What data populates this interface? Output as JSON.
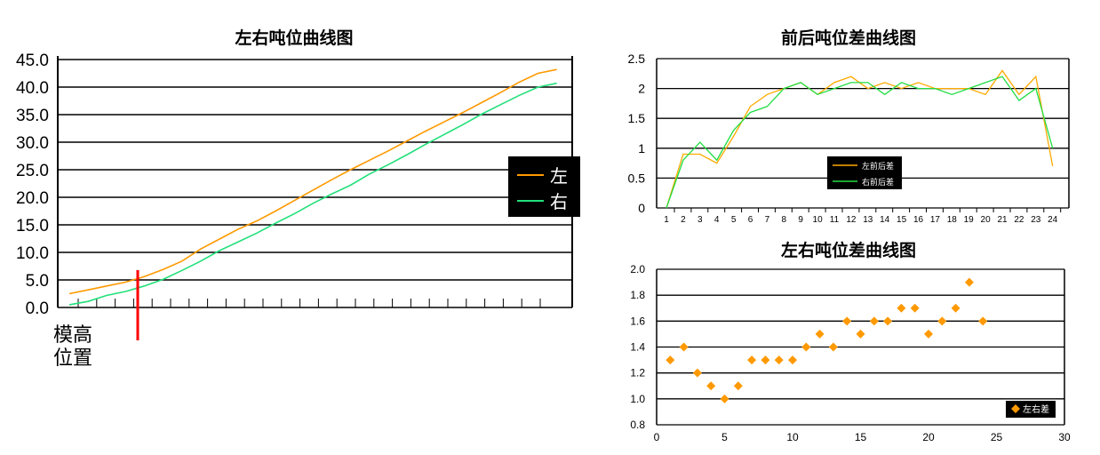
{
  "chart_data": [
    {
      "type": "line",
      "title": "左右吨位曲线图",
      "ylim": [
        0,
        45
      ],
      "yticks": [
        "0.0",
        "5.0",
        "10.0",
        "15.0",
        "20.0",
        "25.0",
        "30.0",
        "35.0",
        "40.0",
        "45.0"
      ],
      "x": [
        1,
        2,
        3,
        4,
        5,
        6,
        7,
        8,
        9,
        10,
        11,
        12,
        13,
        14,
        15,
        16,
        17,
        18,
        19,
        20,
        21,
        22,
        23,
        24,
        25,
        26,
        27
      ],
      "grid": true,
      "legend": "right",
      "series": [
        {
          "name": "左",
          "color": "#ff9900",
          "values": [
            2.5,
            3.2,
            3.9,
            4.6,
            5.6,
            6.9,
            8.4,
            10.6,
            12.4,
            14.2,
            15.7,
            17.5,
            19.4,
            21.3,
            23.2,
            25.0,
            26.7,
            28.4,
            30.2,
            32.0,
            33.7,
            35.4,
            37.2,
            39.0,
            40.9,
            42.5,
            43.2
          ]
        },
        {
          "name": "右",
          "color": "#22e07a",
          "values": [
            0.5,
            1.1,
            2.2,
            2.9,
            3.9,
            5.1,
            6.7,
            8.4,
            10.3,
            11.9,
            13.5,
            15.3,
            17.0,
            18.9,
            20.6,
            22.2,
            24.2,
            25.9,
            27.7,
            29.6,
            31.4,
            33.2,
            35.1,
            36.8,
            38.5,
            40.0,
            40.7
          ]
        }
      ],
      "annotation": {
        "label_line1": "模高",
        "label_line2": "位置",
        "color": "#ff0000"
      }
    },
    {
      "type": "line",
      "title": "前后吨位差曲线图",
      "ylim": [
        0,
        2.5
      ],
      "yticks": [
        "0",
        "0.5",
        "1",
        "1.5",
        "2",
        "2.5"
      ],
      "categories": [
        "1",
        "2",
        "3",
        "4",
        "5",
        "6",
        "7",
        "8",
        "9",
        "10",
        "11",
        "12",
        "13",
        "14",
        "15",
        "16",
        "17",
        "18",
        "19",
        "20",
        "21",
        "22",
        "23",
        "24"
      ],
      "grid": true,
      "legend": "center-bottom",
      "series": [
        {
          "name": "左前后差",
          "color": "#ffaa00",
          "values": [
            0,
            0.9,
            0.9,
            0.75,
            1.2,
            1.7,
            1.9,
            2.0,
            2.1,
            1.9,
            2.1,
            2.2,
            2.0,
            2.1,
            2.0,
            2.1,
            2.0,
            2.0,
            2.0,
            1.9,
            2.3,
            1.9,
            2.2,
            0.7
          ]
        },
        {
          "name": "右前后差",
          "color": "#22dd44",
          "values": [
            0,
            0.8,
            1.1,
            0.8,
            1.3,
            1.6,
            1.7,
            2.0,
            2.1,
            1.9,
            2.0,
            2.1,
            2.1,
            1.9,
            2.1,
            2.0,
            2.0,
            1.9,
            2.0,
            2.1,
            2.2,
            1.8,
            2.0,
            1.0
          ]
        }
      ]
    },
    {
      "type": "scatter",
      "title": "左右吨位差曲线图",
      "xlim": [
        0,
        30
      ],
      "ylim": [
        0.8,
        2.0
      ],
      "xticks": [
        "0",
        "5",
        "10",
        "15",
        "20",
        "25",
        "30"
      ],
      "yticks": [
        "0.8",
        "1.0",
        "1.2",
        "1.4",
        "1.6",
        "1.8",
        "2.0"
      ],
      "grid": true,
      "legend": "bottom-right",
      "series": [
        {
          "name": "左右差",
          "color": "#ff9900",
          "x": [
            1,
            2,
            3,
            4,
            5,
            6,
            7,
            8,
            9,
            10,
            11,
            12,
            13,
            14,
            15,
            16,
            17,
            18,
            19,
            20,
            21,
            22,
            23,
            24
          ],
          "values": [
            1.3,
            1.4,
            1.2,
            1.1,
            1.0,
            1.1,
            1.3,
            1.3,
            1.3,
            1.3,
            1.4,
            1.5,
            1.4,
            1.6,
            1.5,
            1.6,
            1.6,
            1.7,
            1.7,
            1.5,
            1.6,
            1.7,
            1.9,
            1.6
          ]
        }
      ]
    }
  ]
}
